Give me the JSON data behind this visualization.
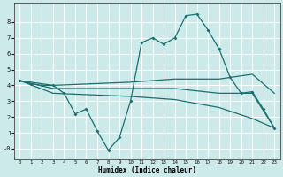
{
  "xlabel": "Humidex (Indice chaleur)",
  "bg_color": "#cceaea",
  "grid_color": "#ffffff",
  "line_color": "#1a7070",
  "x_ticks": [
    0,
    1,
    2,
    3,
    4,
    5,
    6,
    7,
    8,
    9,
    10,
    11,
    12,
    13,
    14,
    15,
    16,
    17,
    18,
    19,
    20,
    21,
    22,
    23
  ],
  "y_ticks": [
    0,
    1,
    2,
    3,
    4,
    5,
    6,
    7,
    8
  ],
  "y_tick_labels": [
    "-0",
    "1",
    "2",
    "3",
    "4",
    "5",
    "6",
    "7",
    "8"
  ],
  "ylim": [
    -0.7,
    9.2
  ],
  "xlim": [
    -0.5,
    23.5
  ],
  "series1_x": [
    0,
    1,
    2,
    3,
    4,
    5,
    6,
    7,
    8,
    9,
    10,
    11,
    12,
    13,
    14,
    15,
    16,
    17,
    18,
    19,
    20,
    21,
    22,
    23
  ],
  "series1_y": [
    4.3,
    4.1,
    4.0,
    4.0,
    3.5,
    2.2,
    2.5,
    1.1,
    -0.1,
    0.7,
    3.0,
    6.7,
    7.0,
    6.6,
    7.0,
    8.4,
    8.5,
    7.5,
    6.3,
    4.5,
    3.5,
    3.6,
    2.5,
    1.3
  ],
  "series2_x": [
    0,
    3,
    10,
    14,
    18,
    21,
    23
  ],
  "series2_y": [
    4.3,
    4.0,
    4.2,
    4.4,
    4.4,
    4.7,
    3.5
  ],
  "series3_x": [
    0,
    3,
    10,
    14,
    18,
    21,
    23
  ],
  "series3_y": [
    4.3,
    3.8,
    3.8,
    3.8,
    3.5,
    3.5,
    1.3
  ],
  "series4_x": [
    0,
    3,
    10,
    14,
    18,
    21,
    23
  ],
  "series4_y": [
    4.3,
    3.5,
    3.3,
    3.1,
    2.6,
    1.9,
    1.3
  ]
}
